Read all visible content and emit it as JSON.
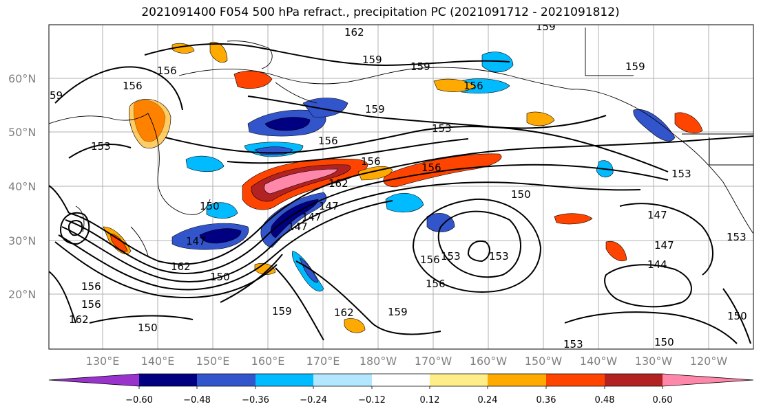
{
  "title": "2021091400 F054 500 hPa refract., precipitation PC (2021091712 - 2021091812)",
  "lat_labels": [
    "60°N",
    "50°N",
    "40°N",
    "30°N",
    "20°N"
  ],
  "lon_labels": [
    "130°E",
    "140°E",
    "150°E",
    "160°E",
    "170°E",
    "180°W",
    "170°W",
    "160°W",
    "150°W",
    "140°W",
    "130°W",
    "120°W"
  ],
  "contour_labels": [
    "162",
    "159",
    "159",
    "159",
    "156",
    "159",
    "156",
    "156",
    "153",
    "159",
    "156",
    "156",
    "156",
    "162",
    "147",
    "153",
    "150",
    "147",
    "162",
    "147",
    "147",
    "150",
    "159",
    "162",
    "156",
    "153",
    "156",
    "156",
    "153",
    "147",
    "147",
    "144",
    "153",
    "159",
    "150",
    "150",
    "153",
    "150",
    "59",
    "153",
    "156",
    "162",
    "150"
  ],
  "colorbar": {
    "colors": [
      "#9933cc",
      "#000080",
      "#3355cc",
      "#00bbff",
      "#b3e6ff",
      "#ffffff",
      "#ffee88",
      "#ffaa00",
      "#ff4400",
      "#b22222",
      "#ff88aa"
    ],
    "labels": [
      "−0.60",
      "−0.48",
      "−0.36",
      "−0.24",
      "−0.12",
      "0.12",
      "0.24",
      "0.36",
      "0.48",
      "0.60"
    ]
  }
}
